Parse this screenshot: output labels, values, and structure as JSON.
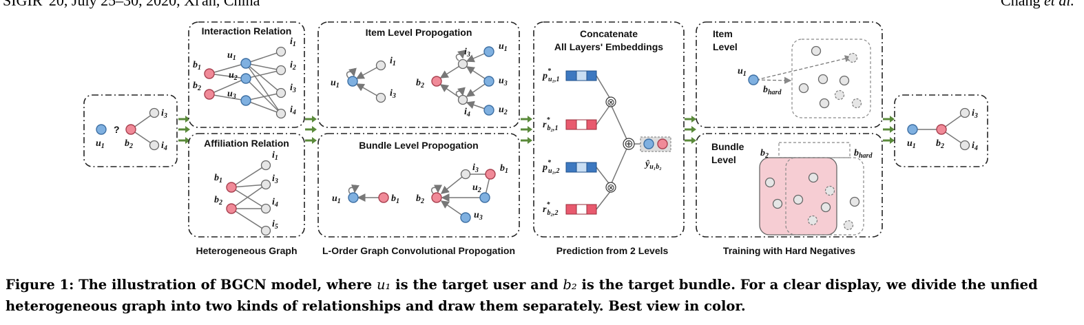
{
  "header": {
    "left": "SIGIR '20, July 25–30, 2020, Xi'an, China",
    "right_prefix": "Chang ",
    "right_italic": "et al."
  },
  "figure": {
    "input_question": "?",
    "panel_titles": {
      "interaction": "Interaction Relation",
      "affiliation": "Affiliation Relation",
      "item_prop": "Item Level Propogation",
      "bundle_prop": "Bundle Level Propogation",
      "concat_line1": "Concatenate",
      "concat_line2": "All Layers' Embeddings",
      "item_level_line1": "Item",
      "item_level_line2": "Level",
      "bundle_level_line1": "Bundle",
      "bundle_level_line2": "Level"
    },
    "bottom_labels": {
      "hetero": "Heterogeneous Graph",
      "lorder": "L-Order Graph Convolutional Propogation",
      "prediction": "Prediction from 2 Levels",
      "training": "Training with Hard Negatives"
    },
    "symbols": {
      "u": "u",
      "b": "b",
      "i": "i",
      "p": "p",
      "r": "r",
      "y": "y",
      "hard": "hard",
      "star": "*",
      "sub_u1_1": "u₁1,1",
      "sub_b2_1": "b₂2,1",
      "sub_u1_2": "u₁1,2",
      "sub_b2_2": "b₂2,2",
      "sub_u1b2": "u₁b₂",
      "hat": "^",
      "otimes": "⊗",
      "oplus": "⊕"
    }
  },
  "caption": {
    "prefix": "Figure 1: The illustration of BGCN model, where ",
    "u1": "u₁",
    "mid": " is the target user and ",
    "b2": "b₂",
    "suffix": " is the target bundle. For a clear display, we divide the unfied heterogeneous graph into two kinds of relationships and draw them separately. Best view in color."
  }
}
